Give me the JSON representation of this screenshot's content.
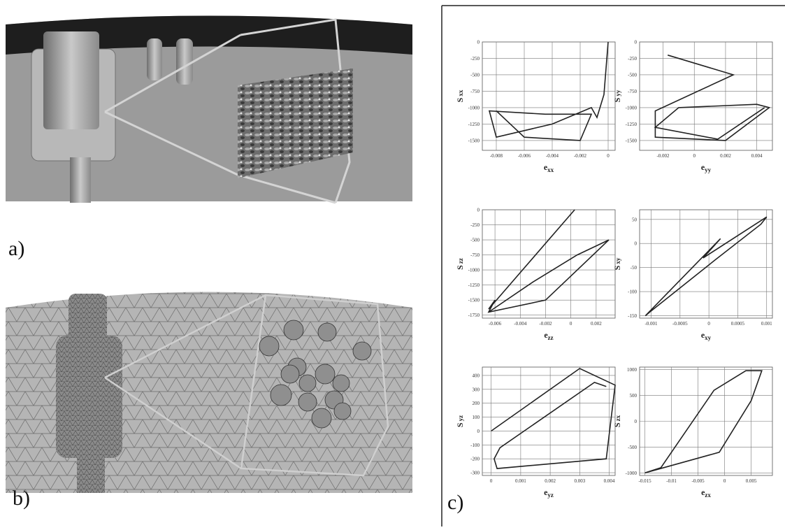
{
  "labels": {
    "a": "a)",
    "b": "b)",
    "c": "c)"
  },
  "chart_data": [
    {
      "type": "line",
      "grid": true,
      "x_label": {
        "main": "e",
        "sub": "xx"
      },
      "y_label": {
        "main": "S",
        "sub": "xx"
      },
      "xlim": [
        -0.009,
        0.0005
      ],
      "ylim": [
        -1650,
        0
      ],
      "xticks": [
        -0.008,
        -0.006,
        -0.004,
        -0.002,
        0
      ],
      "yticks": [
        0,
        -250,
        -500,
        -750,
        -1000,
        -1250,
        -1500
      ],
      "x": [
        0,
        -0.0003,
        -0.0008,
        -0.0012,
        -0.004,
        -0.008,
        -0.0085,
        -0.0045,
        -0.0012,
        -0.002,
        -0.006,
        -0.008
      ],
      "series": [
        {
          "color": "#222222",
          "values": [
            0,
            -800,
            -1150,
            -1000,
            -1250,
            -1450,
            -1050,
            -1100,
            -1100,
            -1500,
            -1450,
            -1050
          ]
        }
      ]
    },
    {
      "type": "line",
      "grid": true,
      "x_label": {
        "main": "e",
        "sub": "yy"
      },
      "y_label": {
        "main": "S",
        "sub": "yy"
      },
      "xlim": [
        -0.0035,
        0.005
      ],
      "ylim": [
        -1650,
        0
      ],
      "xticks": [
        -0.002,
        0,
        0.002,
        0.004
      ],
      "yticks": [
        0,
        -250,
        -500,
        -750,
        -1000,
        -1250,
        -1500
      ],
      "x": [
        -0.0017,
        0.0025,
        -0.0025,
        -0.0025,
        0.002,
        0.0048,
        0.004,
        -0.001,
        -0.0025,
        0.0015,
        0.0045
      ],
      "series": [
        {
          "color": "#222222",
          "values": [
            -200,
            -500,
            -1050,
            -1450,
            -1500,
            -1000,
            -950,
            -1000,
            -1300,
            -1480,
            -1000
          ]
        }
      ]
    },
    {
      "type": "line",
      "grid": true,
      "x_label": {
        "main": "e",
        "sub": "zz"
      },
      "y_label": {
        "main": "S",
        "sub": "zz"
      },
      "xlim": [
        -0.007,
        0.0035
      ],
      "ylim": [
        -1800,
        0
      ],
      "xticks": [
        -0.006,
        -0.004,
        -0.002,
        0,
        0.002
      ],
      "yticks": [
        0,
        -250,
        -500,
        -750,
        -1000,
        -1250,
        -1500,
        -1750
      ],
      "x": [
        0.0003,
        -0.0065,
        -0.006,
        -0.0065,
        -0.002,
        0.003,
        0.0005,
        -0.003,
        -0.0065
      ],
      "series": [
        {
          "color": "#222222",
          "values": [
            0,
            -1650,
            -1500,
            -1700,
            -1500,
            -500,
            -750,
            -1200,
            -1700
          ]
        }
      ]
    },
    {
      "type": "line",
      "grid": true,
      "x_label": {
        "main": "e",
        "sub": "xy"
      },
      "y_label": {
        "main": "S",
        "sub": "xy"
      },
      "xlim": [
        -0.0012,
        0.0011
      ],
      "ylim": [
        -155,
        70
      ],
      "xticks": [
        -0.001,
        -0.0005,
        0,
        0.0005,
        0.001
      ],
      "yticks": [
        50,
        0,
        -50,
        -100,
        -150
      ],
      "x": [
        -0.0011,
        0.0002,
        -0.0001,
        0.001,
        0.0009,
        0.0001,
        -0.001,
        -0.0011
      ],
      "series": [
        {
          "color": "#222222",
          "values": [
            -150,
            10,
            -30,
            55,
            40,
            -35,
            -140,
            -150
          ]
        }
      ]
    },
    {
      "type": "line",
      "grid": true,
      "x_label": {
        "main": "e",
        "sub": "yz"
      },
      "y_label": {
        "main": "S",
        "sub": "yz"
      },
      "xlim": [
        -0.0003,
        0.0042
      ],
      "ylim": [
        -320,
        460
      ],
      "xticks": [
        0,
        0.001,
        0.002,
        0.003,
        0.004
      ],
      "yticks": [
        400,
        300,
        200,
        100,
        0,
        -100,
        -200,
        -300
      ],
      "x": [
        0,
        0.003,
        0.0042,
        0.0039,
        0.0002,
        0.0001,
        0.0003,
        0.0035,
        0.0039
      ],
      "series": [
        {
          "color": "#222222",
          "values": [
            0,
            450,
            330,
            -200,
            -270,
            -200,
            -120,
            350,
            320
          ]
        }
      ]
    },
    {
      "type": "line",
      "grid": true,
      "x_label": {
        "main": "e",
        "sub": "zx"
      },
      "y_label": {
        "main": "S",
        "sub": "zx"
      },
      "xlim": [
        -0.016,
        0.009
      ],
      "ylim": [
        -1050,
        1050
      ],
      "xticks": [
        -0.015,
        -0.01,
        -0.005,
        0,
        0.005
      ],
      "yticks": [
        1000,
        500,
        0,
        -500,
        -1000
      ],
      "x": [
        -0.015,
        -0.012,
        -0.002,
        0.004,
        0.007,
        0.005,
        -0.001,
        -0.015
      ],
      "series": [
        {
          "color": "#222222",
          "values": [
            -1000,
            -900,
            600,
            980,
            980,
            400,
            -600,
            -1000
          ]
        }
      ]
    }
  ]
}
